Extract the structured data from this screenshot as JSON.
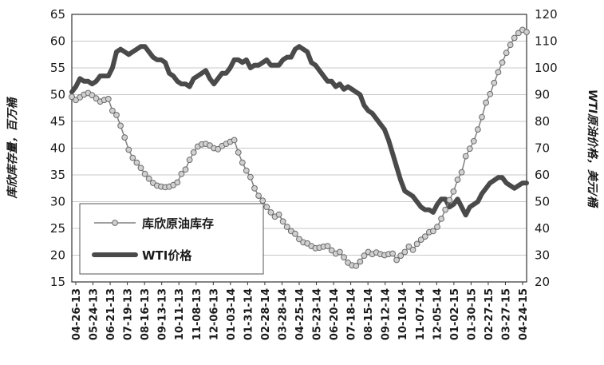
{
  "chart_data": {
    "type": "line",
    "left_axis": {
      "label": "库欣库存量，百万桶",
      "ticks": [
        15,
        20,
        25,
        30,
        35,
        40,
        45,
        50,
        55,
        60,
        65
      ],
      "range": [
        15,
        65
      ]
    },
    "right_axis": {
      "label": "WTI原油价格，美元/桶",
      "ticks": [
        20,
        30,
        40,
        50,
        60,
        70,
        80,
        90,
        100,
        110,
        120
      ],
      "range": [
        20,
        120
      ]
    },
    "x_tick_labels": [
      "04-26-13",
      "05-24-13",
      "06-21-13",
      "07-19-13",
      "08-16-13",
      "09-13-13",
      "10-11-13",
      "11-08-13",
      "12-06-13",
      "01-03-14",
      "01-31-14",
      "02-28-14",
      "03-28-14",
      "04-25-14",
      "05-23-14",
      "06-20-14",
      "07-18-14",
      "08-15-14",
      "09-12-14",
      "10-10-14",
      "11-07-14",
      "12-05-14",
      "01-02-15",
      "01-30-15",
      "02-27-15",
      "03-27-15",
      "04-24-15"
    ],
    "grid": true,
    "legend_position": "bottom-left",
    "series": [
      {
        "name": "库欣原油库存",
        "axis": "left",
        "style": "line-with-circle-markers",
        "color": "#7f7f7f",
        "values": [
          49.6,
          49.0,
          49.5,
          50.0,
          50.3,
          49.9,
          49.3,
          48.7,
          49.0,
          49.2,
          47.0,
          46.2,
          44.2,
          42.0,
          39.7,
          38.2,
          37.3,
          36.3,
          35.2,
          34.3,
          33.5,
          33.0,
          32.8,
          32.7,
          32.8,
          33.1,
          33.6,
          35.2,
          36.0,
          37.8,
          39.2,
          40.3,
          40.7,
          40.8,
          40.5,
          40.0,
          39.8,
          40.4,
          40.8,
          41.2,
          41.5,
          39.2,
          37.3,
          35.8,
          34.6,
          32.5,
          31.1,
          30.2,
          29.0,
          28.0,
          27.2,
          27.6,
          26.3,
          25.3,
          24.5,
          24.0,
          23.0,
          22.4,
          22.2,
          21.7,
          21.3,
          21.4,
          21.6,
          21.7,
          20.9,
          20.3,
          20.6,
          19.6,
          18.6,
          18.1,
          18.0,
          18.8,
          19.9,
          20.6,
          20.2,
          20.5,
          20.2,
          20.0,
          20.2,
          20.3,
          19.1,
          19.9,
          20.6,
          21.6,
          21.0,
          22.1,
          22.9,
          23.5,
          24.3,
          24.5,
          25.3,
          26.8,
          28.5,
          30.3,
          31.9,
          34.1,
          35.5,
          38.5,
          39.9,
          41.3,
          43.5,
          45.8,
          48.5,
          50.1,
          52.2,
          54.2,
          56.0,
          57.8,
          59.3,
          60.6,
          61.5,
          62.1,
          61.7
        ]
      },
      {
        "name": "WTI价格",
        "axis": "right",
        "style": "thick-line",
        "color": "#4a4a4a",
        "values": [
          91,
          93,
          96,
          95,
          95,
          94,
          95,
          97,
          97,
          97,
          100,
          106,
          107,
          106,
          105,
          106,
          107,
          108,
          108,
          106,
          104,
          103,
          103,
          102,
          98,
          97,
          95,
          94,
          94,
          93,
          96,
          97,
          98,
          99,
          96,
          94,
          96,
          98,
          98,
          100,
          103,
          103,
          102,
          103,
          100,
          101,
          101,
          102,
          103,
          101,
          101,
          101,
          103,
          104,
          104,
          107,
          108,
          107,
          106,
          102,
          101,
          99,
          97,
          95,
          95,
          93,
          94,
          92,
          93,
          92,
          91,
          90,
          86,
          84,
          83,
          81,
          79,
          77,
          73,
          68,
          63,
          58,
          54,
          53,
          52,
          50,
          48,
          47,
          47,
          46,
          49,
          51,
          51,
          48,
          49,
          51,
          48,
          45,
          48,
          49,
          50,
          53,
          55,
          57,
          58,
          59,
          59,
          57,
          56,
          55,
          56,
          57,
          57
        ]
      }
    ]
  }
}
